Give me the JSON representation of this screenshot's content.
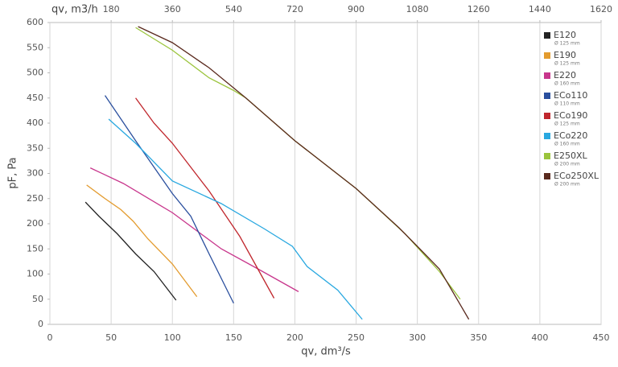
{
  "chart_data": {
    "type": "line",
    "x_label": "qv, dm³/s",
    "y_label": "pF, Pa",
    "x2_label": "qv, m3/h",
    "xlim": [
      0,
      450
    ],
    "xticks": [
      0,
      50,
      100,
      150,
      200,
      250,
      300,
      350,
      400,
      450
    ],
    "ylim": [
      0,
      600
    ],
    "yticks": [
      0,
      50,
      100,
      150,
      200,
      250,
      300,
      350,
      400,
      450,
      500,
      550,
      600
    ],
    "x2lim": [
      0,
      1620
    ],
    "x2ticks": [
      180,
      360,
      540,
      720,
      900,
      1080,
      1260,
      1440,
      1620
    ],
    "grid": "x",
    "legend": "top-right",
    "series": [
      {
        "name": "E120",
        "diameter": "Ø 125 mm",
        "color": "#222222",
        "x": [
          29,
          40,
          55,
          70,
          85,
          103
        ],
        "values": [
          243,
          215,
          180,
          140,
          105,
          48
        ]
      },
      {
        "name": "E190",
        "diameter": "Ø 125 mm",
        "color": "#e39b2e",
        "x": [
          30,
          45,
          58,
          68,
          80,
          100,
          120
        ],
        "values": [
          277,
          250,
          228,
          205,
          170,
          120,
          55
        ]
      },
      {
        "name": "E220",
        "diameter": "Ø 160 mm",
        "color": "#c8368c",
        "x": [
          33,
          60,
          100,
          140,
          170,
          203
        ],
        "values": [
          311,
          280,
          222,
          150,
          110,
          65
        ]
      },
      {
        "name": "ECo110",
        "diameter": "Ø 110 mm",
        "color": "#2a4f9e",
        "x": [
          45,
          70,
          100,
          115,
          130,
          150
        ],
        "values": [
          455,
          365,
          260,
          215,
          140,
          42
        ]
      },
      {
        "name": "ECo190",
        "diameter": "Ø 125 mm",
        "color": "#c0272d",
        "x": [
          70,
          85,
          100,
          130,
          155,
          183
        ],
        "values": [
          450,
          400,
          360,
          265,
          175,
          52
        ]
      },
      {
        "name": "ECo220",
        "diameter": "Ø 160 mm",
        "color": "#29a8e0",
        "x": [
          48,
          70,
          100,
          140,
          175,
          198,
          210,
          235,
          255
        ],
        "values": [
          408,
          360,
          285,
          240,
          190,
          155,
          115,
          68,
          10
        ]
      },
      {
        "name": "E250XL",
        "diameter": "Ø 200 mm",
        "color": "#9bc43c",
        "x": [
          70,
          100,
          130,
          150,
          160,
          200,
          250,
          290,
          318,
          335
        ],
        "values": [
          590,
          545,
          490,
          465,
          450,
          365,
          270,
          180,
          105,
          50
        ]
      },
      {
        "name": "ECo250XL",
        "diameter": "Ø 200 mm",
        "color": "#5a2a1e",
        "x": [
          72,
          100,
          130,
          160,
          200,
          250,
          285,
          300,
          318,
          342
        ],
        "values": [
          592,
          560,
          510,
          450,
          365,
          270,
          192,
          155,
          110,
          10
        ]
      }
    ]
  }
}
